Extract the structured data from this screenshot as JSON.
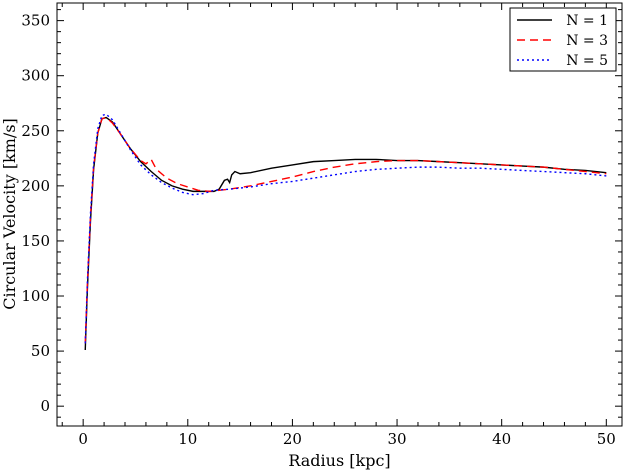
{
  "chart_data": {
    "type": "line",
    "xlabel": "Radius [kpc]",
    "ylabel": "Circular Velocity [km/s]",
    "xlim": [
      -2.5,
      51.5
    ],
    "ylim": [
      -18,
      366
    ],
    "xticks": [
      0,
      10,
      20,
      30,
      40,
      50
    ],
    "yticks": [
      0,
      50,
      100,
      150,
      200,
      250,
      300,
      350
    ],
    "grid": false,
    "legend_position": "top-right",
    "series": [
      {
        "name": "N = 1",
        "color": "#000000",
        "dash": "solid",
        "points": [
          [
            0.2,
            51
          ],
          [
            0.4,
            105
          ],
          [
            0.7,
            168
          ],
          [
            1.0,
            215
          ],
          [
            1.4,
            248
          ],
          [
            1.8,
            261
          ],
          [
            2.2,
            262
          ],
          [
            2.8,
            258
          ],
          [
            3.5,
            248
          ],
          [
            4.5,
            234
          ],
          [
            5.5,
            222
          ],
          [
            6.5,
            213
          ],
          [
            7.5,
            205
          ],
          [
            8.5,
            200
          ],
          [
            9.5,
            197
          ],
          [
            10.5,
            195
          ],
          [
            11.5,
            195
          ],
          [
            12.5,
            195
          ],
          [
            13.0,
            197
          ],
          [
            13.5,
            205
          ],
          [
            13.8,
            206
          ],
          [
            14.0,
            203
          ],
          [
            14.2,
            210
          ],
          [
            14.5,
            213
          ],
          [
            15.0,
            211
          ],
          [
            16,
            212
          ],
          [
            18,
            216
          ],
          [
            20,
            219
          ],
          [
            22,
            222
          ],
          [
            24,
            223
          ],
          [
            26,
            224
          ],
          [
            28,
            224
          ],
          [
            30,
            223
          ],
          [
            32,
            223
          ],
          [
            34,
            222
          ],
          [
            36,
            221
          ],
          [
            38,
            220
          ],
          [
            40,
            219
          ],
          [
            42,
            218
          ],
          [
            44,
            217
          ],
          [
            46,
            215
          ],
          [
            48,
            214
          ],
          [
            50,
            212
          ]
        ]
      },
      {
        "name": "N = 3",
        "color": "#ff0000",
        "dash": "8,5",
        "points": [
          [
            0.2,
            57
          ],
          [
            0.4,
            110
          ],
          [
            0.7,
            172
          ],
          [
            1.0,
            217
          ],
          [
            1.4,
            248
          ],
          [
            1.8,
            261
          ],
          [
            2.2,
            262
          ],
          [
            2.8,
            257
          ],
          [
            3.5,
            248
          ],
          [
            4.5,
            234
          ],
          [
            5.5,
            223
          ],
          [
            6.0,
            220
          ],
          [
            6.5,
            224
          ],
          [
            7.0,
            215
          ],
          [
            8,
            207
          ],
          [
            9,
            202
          ],
          [
            10,
            199
          ],
          [
            11,
            196
          ],
          [
            12,
            195
          ],
          [
            14,
            197
          ],
          [
            16,
            200
          ],
          [
            18,
            204
          ],
          [
            20,
            208
          ],
          [
            22,
            213
          ],
          [
            24,
            217
          ],
          [
            26,
            220
          ],
          [
            28,
            222
          ],
          [
            30,
            223
          ],
          [
            32,
            223
          ],
          [
            34,
            222
          ],
          [
            36,
            221
          ],
          [
            38,
            220
          ],
          [
            40,
            219
          ],
          [
            42,
            218
          ],
          [
            44,
            217
          ],
          [
            46,
            215
          ],
          [
            48,
            213
          ],
          [
            50,
            211
          ]
        ]
      },
      {
        "name": "N = 5",
        "color": "#0000ff",
        "dash": "2,3",
        "points": [
          [
            0.2,
            57
          ],
          [
            0.4,
            112
          ],
          [
            0.7,
            175
          ],
          [
            1.0,
            220
          ],
          [
            1.4,
            252
          ],
          [
            1.8,
            264
          ],
          [
            2.2,
            265
          ],
          [
            2.8,
            260
          ],
          [
            3.5,
            249
          ],
          [
            4.5,
            233
          ],
          [
            5.5,
            219
          ],
          [
            6.5,
            210
          ],
          [
            7.5,
            203
          ],
          [
            8.5,
            198
          ],
          [
            9.5,
            194
          ],
          [
            10.5,
            192
          ],
          [
            11.5,
            193
          ],
          [
            12.5,
            196
          ],
          [
            14,
            197
          ],
          [
            16,
            199
          ],
          [
            18,
            202
          ],
          [
            20,
            204
          ],
          [
            22,
            207
          ],
          [
            24,
            210
          ],
          [
            26,
            213
          ],
          [
            28,
            215
          ],
          [
            30,
            216
          ],
          [
            32,
            217
          ],
          [
            34,
            217
          ],
          [
            36,
            216
          ],
          [
            38,
            216
          ],
          [
            40,
            215
          ],
          [
            42,
            214
          ],
          [
            44,
            213
          ],
          [
            46,
            212
          ],
          [
            48,
            211
          ],
          [
            50,
            209
          ]
        ]
      }
    ]
  }
}
